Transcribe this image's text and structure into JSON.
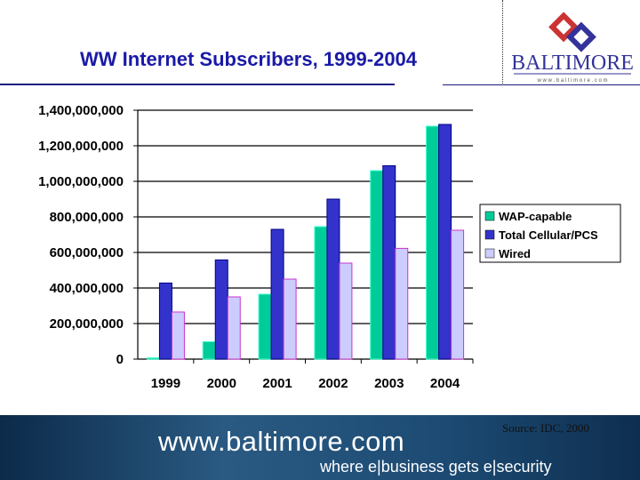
{
  "slide": {
    "title": "WW Internet Subscribers, 1999-2004",
    "logo_text": "BALTIMORE",
    "logo_url": "w w w . b a l t i m o r e . c o m",
    "source": "Source: IDC, 2000",
    "banner_url": "www.baltimore.com",
    "banner_tagline": "where e|business gets e|security"
  },
  "chart_data": {
    "type": "bar",
    "title": "",
    "categories": [
      "1999",
      "2000",
      "2001",
      "2002",
      "2003",
      "2004"
    ],
    "series": [
      {
        "name": "WAP-capable",
        "color": "#00cc99",
        "values": [
          7000000,
          98000000,
          365000000,
          745000000,
          1060000000,
          1310000000
        ]
      },
      {
        "name": "Total Cellular/PCS",
        "color": "#3333cc",
        "values": [
          428000000,
          558000000,
          730000000,
          900000000,
          1088000000,
          1320000000
        ]
      },
      {
        "name": "Wired",
        "color": "#ccccff",
        "values": [
          265000000,
          350000000,
          450000000,
          540000000,
          623000000,
          725000000
        ]
      }
    ],
    "yticks": [
      "0",
      "200,000,000",
      "400,000,000",
      "600,000,000",
      "800,000,000",
      "1,000,000,000",
      "1,200,000,000",
      "1,400,000,000"
    ],
    "ylim": [
      0,
      1400000000
    ],
    "grid": true,
    "legend": "right"
  }
}
